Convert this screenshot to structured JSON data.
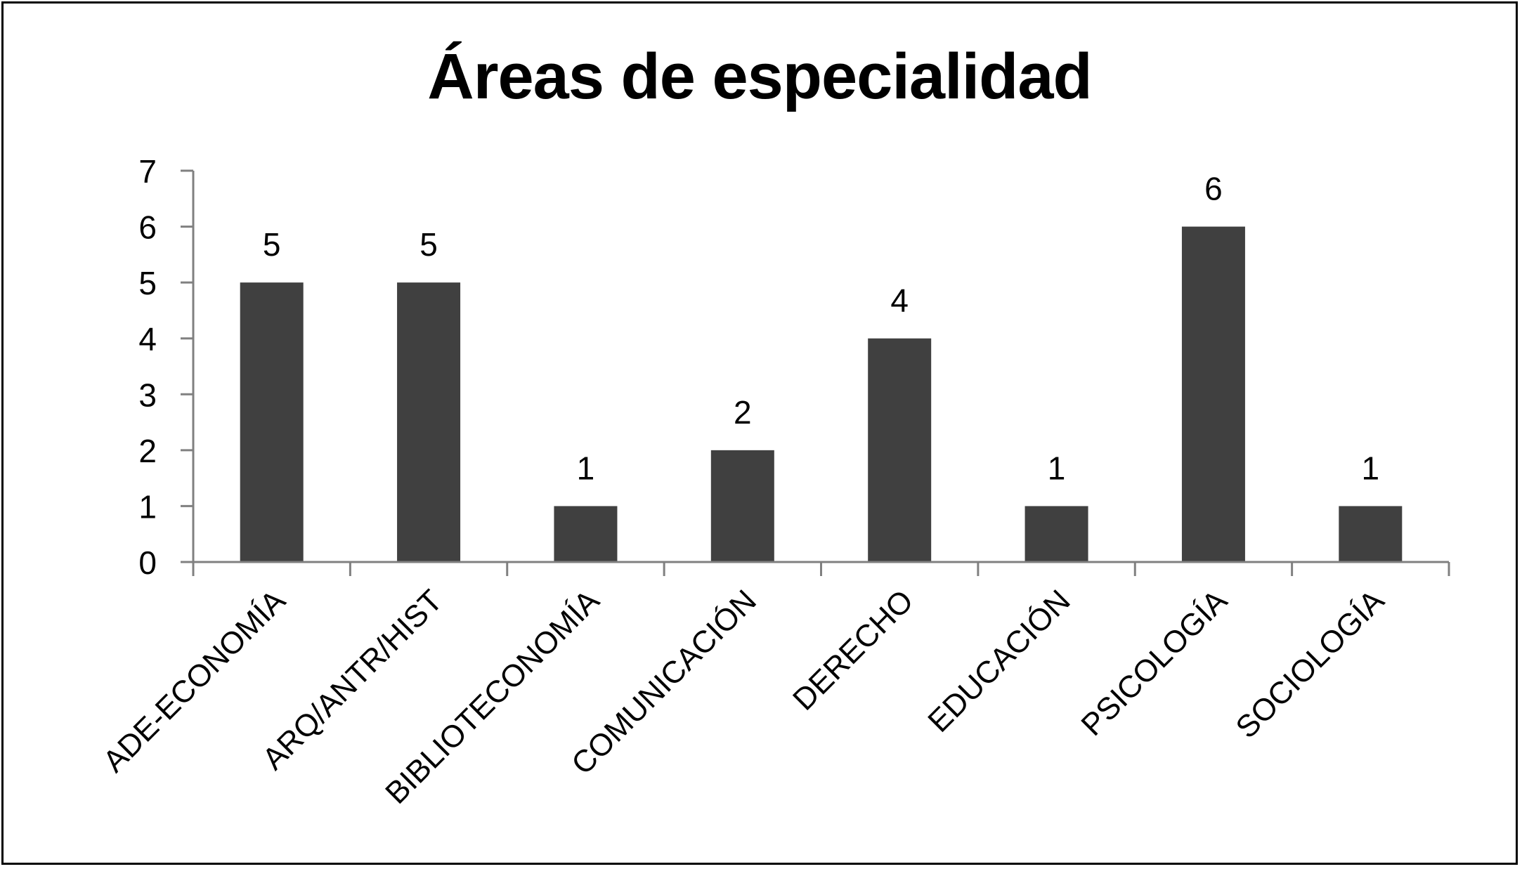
{
  "chart_data": {
    "type": "bar",
    "title": "Áreas de especialidad",
    "xlabel": "",
    "ylabel": "",
    "categories": [
      "ADE-ECONOMÍA",
      "ARQ/ANTR/HIST",
      "BIBLIOTECONOMÍA",
      "COMUNICACIÓN",
      "DERECHO",
      "EDUCACIÓN",
      "PSICOLOGÍA",
      "SOCIOLOGÍA"
    ],
    "values": [
      5,
      5,
      1,
      2,
      4,
      1,
      6,
      1
    ],
    "ylim": [
      0,
      7
    ],
    "yticks": [
      "0",
      "1",
      "2",
      "3",
      "4",
      "5",
      "6",
      "7"
    ],
    "grid": false,
    "legend": "none",
    "bar_color": "#404040",
    "axis_color": "#808080"
  }
}
